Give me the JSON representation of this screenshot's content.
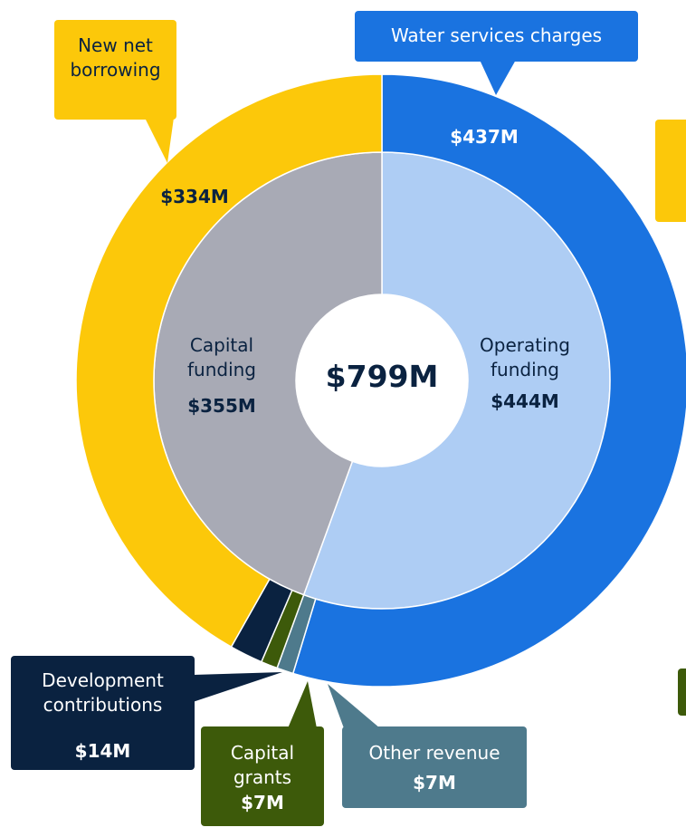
{
  "chart_data": {
    "type": "sunburst",
    "total": 799,
    "total_label": "$799M",
    "segments": [
      {
        "name": "Operating funding",
        "value": 444,
        "value_label": "$444M",
        "color": "#aecdf4",
        "children": [
          {
            "name": "Water services charges",
            "value": 437,
            "value_label": "$437M",
            "color": "#1a73e0"
          },
          {
            "name": "Other revenue",
            "value": 7,
            "value_label": "$7M",
            "color": "#4e7a8c"
          }
        ]
      },
      {
        "name": "Capital funding",
        "value": 355,
        "value_label": "$355M",
        "color": "#a8aab5",
        "children": [
          {
            "name": "Capital grants",
            "value": 7,
            "value_label": "$7M",
            "color": "#3d5a0a"
          },
          {
            "name": "Development contributions",
            "value": 14,
            "value_label": "$14M",
            "color": "#0a2240"
          },
          {
            "name": "New net borrowing",
            "value": 334,
            "value_label": "$334M",
            "color": "#fcc80a"
          }
        ]
      }
    ]
  }
}
